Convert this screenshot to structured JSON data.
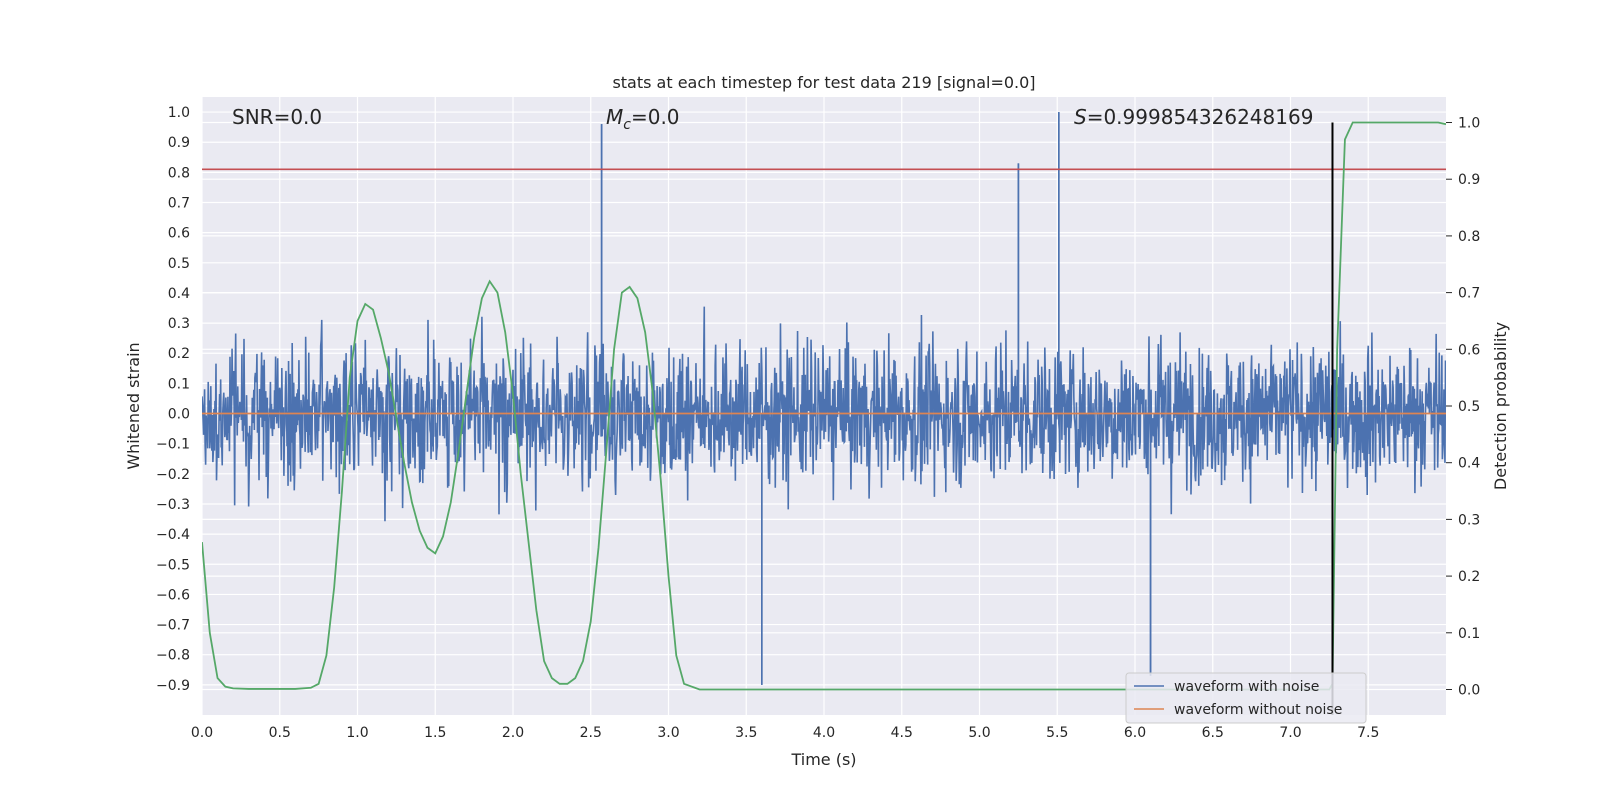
{
  "chart_data": {
    "type": "line",
    "title": "stats at each timestep for test data 219 [signal=0.0]",
    "xlabel": "Time (s)",
    "ylabel": "Whitened strain",
    "y2label": "Detection probability",
    "xlim": [
      0.0,
      8.0
    ],
    "ylim": [
      -1.0,
      1.05
    ],
    "y2lim": [
      -0.045,
      1.045
    ],
    "x_ticks": [
      "0.0",
      "0.5",
      "1.0",
      "1.5",
      "2.0",
      "2.5",
      "3.0",
      "3.5",
      "4.0",
      "4.5",
      "5.0",
      "5.5",
      "6.0",
      "6.5",
      "7.0",
      "7.5"
    ],
    "y_ticks": [
      "1.0",
      "0.9",
      "0.8",
      "0.7",
      "0.6",
      "0.5",
      "0.4",
      "0.3",
      "0.2",
      "0.1",
      "0.0",
      "−0.1",
      "−0.2",
      "−0.3",
      "−0.4",
      "−0.5",
      "−0.6",
      "−0.7",
      "−0.8",
      "−0.9"
    ],
    "y2_ticks": [
      "1.0",
      "0.9",
      "0.8",
      "0.7",
      "0.6",
      "0.5",
      "0.4",
      "0.3",
      "0.2",
      "0.1",
      "0.0"
    ],
    "grid": true,
    "legend_position": "lower-right",
    "annotations": {
      "snr_prefix": "SNR",
      "snr_value": "=0.0",
      "mc_symbol": "M",
      "mc_subscript": "c",
      "mc_value": "=0.0",
      "s_symbol": "S",
      "s_value": "=0.999854326248169"
    },
    "threshold_level": 0.81,
    "peak_time": 7.27,
    "series": [
      {
        "name": "waveform with noise",
        "color": "#4c72b0",
        "note_noise_band": [
          -0.33,
          0.42
        ],
        "spikes": [
          {
            "x": 2.57,
            "y": 0.96
          },
          {
            "x": 5.51,
            "y": 1.0
          },
          {
            "x": 5.25,
            "y": 0.83
          },
          {
            "x": 3.6,
            "y": -0.9
          },
          {
            "x": 6.1,
            "y": -0.87
          }
        ]
      },
      {
        "name": "waveform without noise",
        "color": "#dd8452",
        "x": [
          0.0,
          8.0
        ],
        "y": [
          0.0,
          0.0
        ]
      },
      {
        "name": "detection probability",
        "color": "#55a868",
        "axis": "right",
        "x": [
          0.0,
          0.05,
          0.1,
          0.15,
          0.2,
          0.3,
          0.4,
          0.5,
          0.6,
          0.7,
          0.75,
          0.8,
          0.85,
          0.9,
          0.95,
          1.0,
          1.05,
          1.1,
          1.15,
          1.2,
          1.25,
          1.3,
          1.35,
          1.4,
          1.45,
          1.5,
          1.55,
          1.6,
          1.65,
          1.7,
          1.75,
          1.8,
          1.85,
          1.9,
          1.95,
          2.0,
          2.05,
          2.1,
          2.15,
          2.2,
          2.25,
          2.3,
          2.35,
          2.4,
          2.45,
          2.5,
          2.55,
          2.6,
          2.65,
          2.7,
          2.75,
          2.8,
          2.85,
          2.9,
          2.95,
          3.0,
          3.05,
          3.1,
          3.2,
          3.5,
          4.0,
          5.0,
          6.0,
          6.5,
          7.0,
          7.2,
          7.25,
          7.27,
          7.3,
          7.35,
          7.4,
          7.5,
          7.6,
          7.7,
          7.8,
          7.9,
          7.95,
          8.0
        ],
        "y": [
          0.26,
          0.1,
          0.02,
          0.005,
          0.002,
          0.001,
          0.001,
          0.001,
          0.001,
          0.003,
          0.01,
          0.06,
          0.18,
          0.35,
          0.55,
          0.65,
          0.68,
          0.67,
          0.62,
          0.56,
          0.48,
          0.4,
          0.33,
          0.28,
          0.25,
          0.24,
          0.27,
          0.33,
          0.42,
          0.52,
          0.62,
          0.69,
          0.72,
          0.7,
          0.63,
          0.52,
          0.38,
          0.26,
          0.14,
          0.05,
          0.02,
          0.01,
          0.01,
          0.02,
          0.05,
          0.12,
          0.25,
          0.42,
          0.6,
          0.7,
          0.71,
          0.69,
          0.63,
          0.52,
          0.37,
          0.2,
          0.06,
          0.01,
          0.0,
          0.0,
          0.0,
          0.0,
          0.0,
          0.0,
          0.0,
          0.0,
          0.0,
          0.01,
          0.6,
          0.97,
          1.0,
          1.0,
          1.0,
          1.0,
          1.0,
          1.0,
          1.0,
          0.997
        ]
      }
    ]
  }
}
